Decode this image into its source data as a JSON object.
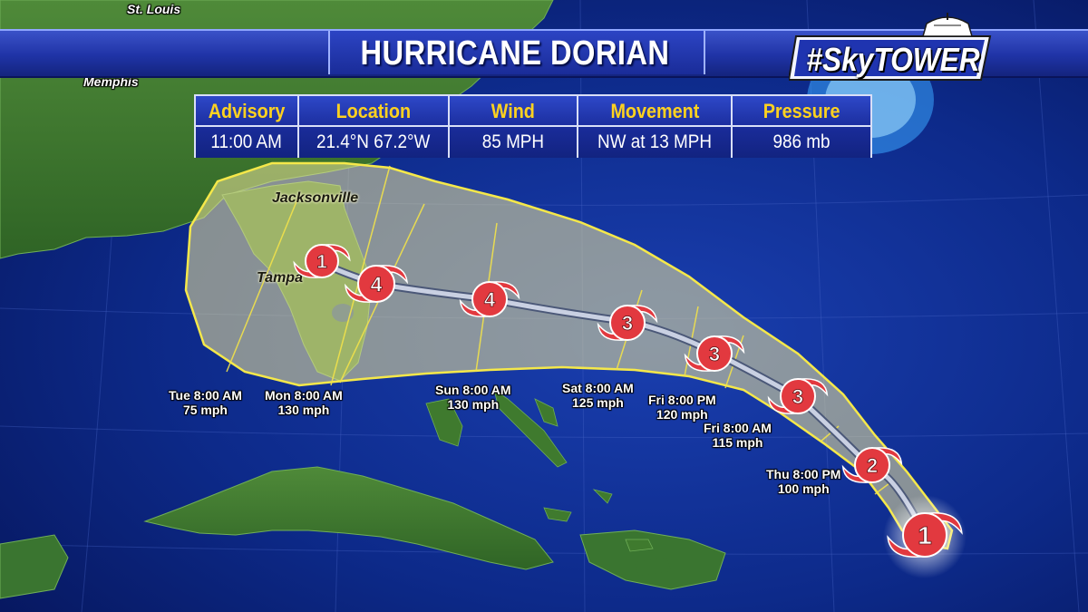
{
  "banner": {
    "title": "HURRICANE DORIAN"
  },
  "logo": {
    "text": "#SkyTOWER"
  },
  "info": {
    "columns": [
      {
        "header": "Advisory",
        "value": "11:00 AM"
      },
      {
        "header": "Location",
        "value": "21.4°N  67.2°W"
      },
      {
        "header": "Wind",
        "value": "85 MPH"
      },
      {
        "header": "Movement",
        "value": "NW at 13 MPH"
      },
      {
        "header": "Pressure",
        "value": "986 mb"
      }
    ]
  },
  "cities": [
    {
      "name": "St. Louis"
    },
    {
      "name": "Memphis"
    },
    {
      "name": "Jacksonville"
    },
    {
      "name": "Tampa"
    }
  ],
  "forecast_points": [
    {
      "category": "1",
      "time": "",
      "wind": ""
    },
    {
      "category": "2",
      "time": "Thu 8:00 PM",
      "wind": "100 mph"
    },
    {
      "category": "3",
      "time": "Fri 8:00 AM",
      "wind": "115 mph"
    },
    {
      "category": "3",
      "time": "Fri 8:00 PM",
      "wind": "120 mph"
    },
    {
      "category": "3",
      "time": "Sat 8:00 AM",
      "wind": "125 mph"
    },
    {
      "category": "4",
      "time": "Sun 8:00 AM",
      "wind": "130 mph"
    },
    {
      "category": "4",
      "time": "Mon 8:00 AM",
      "wind": "130 mph"
    },
    {
      "category": "1",
      "time": "Tue 8:00 AM",
      "wind": "75 mph"
    }
  ],
  "colors": {
    "ocean": "#0b2a86",
    "land": "#3d7a2c",
    "cone_fill": "#e8e07a",
    "cone_edge": "#f2e24a",
    "track": "#b8c0d6",
    "storm_icon": "#e2393f",
    "label_header": "#ffd21f"
  },
  "icons": {
    "storm": "hurricane-symbol-icon",
    "logo": "skytower-icon"
  }
}
